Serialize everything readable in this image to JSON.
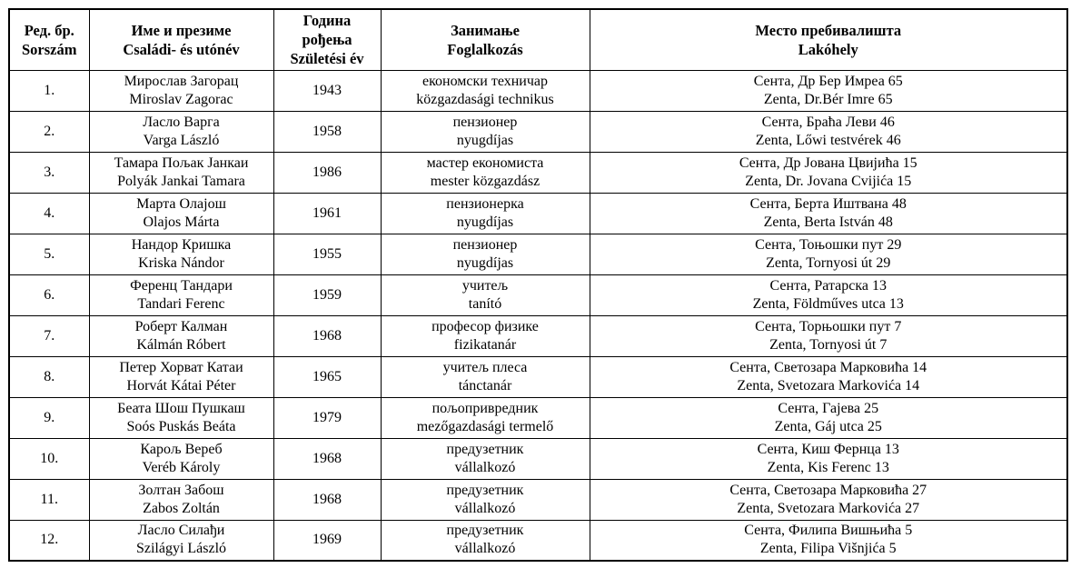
{
  "table": {
    "headers": [
      {
        "sr": "Ред. бр.",
        "hu": "Sorszám"
      },
      {
        "sr": "Име и презиме",
        "hu": "Családi- és utónév"
      },
      {
        "sr": "Година рођења",
        "hu": "Születési év"
      },
      {
        "sr": "Занимање",
        "hu": "Foglalkozás"
      },
      {
        "sr": "Место пребивалишта",
        "hu": "Lakóhely"
      }
    ],
    "rows": [
      {
        "num": "1.",
        "name_sr": "Мирослав Загорац",
        "name_hu": "Miroslav Zagorac",
        "year": "1943",
        "occ_sr": "економски техничар",
        "occ_hu": "közgazdasági technikus",
        "addr_sr": "Сента, Др Бер Имреа 65",
        "addr_hu": "Zenta, Dr.Bér Imre 65"
      },
      {
        "num": "2.",
        "name_sr": "Ласло Варга",
        "name_hu": "Varga László",
        "year": "1958",
        "occ_sr": "пензионер",
        "occ_hu": "nyugdíjas",
        "addr_sr": "Сента, Браћа Леви 46",
        "addr_hu": "Zenta, Lőwi testvérek 46"
      },
      {
        "num": "3.",
        "name_sr": "Тамара Пољак Јанкаи",
        "name_hu": "Polyák Jankai Tamara",
        "year": "1986",
        "occ_sr": "мастер економиста",
        "occ_hu": "mester közgazdász",
        "addr_sr": "Сента, Др Јована Цвијића 15",
        "addr_hu": "Zenta, Dr. Jovana Cvijića 15"
      },
      {
        "num": "4.",
        "name_sr": "Марта Олајош",
        "name_hu": "Olajos Márta",
        "year": "1961",
        "occ_sr": "пензионерка",
        "occ_hu": "nyugdíjas",
        "addr_sr": "Сента, Берта Иштвана 48",
        "addr_hu": "Zenta, Berta István 48"
      },
      {
        "num": "5.",
        "name_sr": "Нандор Кришка",
        "name_hu": "Kriska Nándor",
        "year": "1955",
        "occ_sr": "пензионер",
        "occ_hu": "nyugdíjas",
        "addr_sr": "Сента, Тоњошки пут 29",
        "addr_hu": "Zenta, Tornyosi út 29"
      },
      {
        "num": "6.",
        "name_sr": "Ференц Тандари",
        "name_hu": "Tandari Ferenc",
        "year": "1959",
        "occ_sr": "учитељ",
        "occ_hu": "tanító",
        "addr_sr": "Сента, Ратарска 13",
        "addr_hu": "Zenta, Földműves utca 13"
      },
      {
        "num": "7.",
        "name_sr": "Роберт Калман",
        "name_hu": "Kálmán Róbert",
        "year": "1968",
        "occ_sr": "професор физике",
        "occ_hu": "fizikatanár",
        "addr_sr": "Сента, Торњошки пут 7",
        "addr_hu": "Zenta, Tornyosi út 7"
      },
      {
        "num": "8.",
        "name_sr": "Петер Хорват Катаи",
        "name_hu": "Horvát Kátai Péter",
        "year": "1965",
        "occ_sr": "учитељ плеса",
        "occ_hu": "tánctanár",
        "addr_sr": "Сента, Светозара Марковића 14",
        "addr_hu": "Zenta, Svetozara Markovića 14"
      },
      {
        "num": "9.",
        "name_sr": "Беата Шош Пушкаш",
        "name_hu": "Soós Puskás Beáta",
        "year": "1979",
        "occ_sr": "пољопривредник",
        "occ_hu": "mezőgazdasági termelő",
        "addr_sr": "Сента, Гајева 25",
        "addr_hu": "Zenta, Gáj utca 25"
      },
      {
        "num": "10.",
        "name_sr": "Карољ Вереб",
        "name_hu": "Veréb Károly",
        "year": "1968",
        "occ_sr": "предузетник",
        "occ_hu": "vállalkozó",
        "addr_sr": "Сента, Киш Фернца 13",
        "addr_hu": "Zenta, Kis Ferenc 13"
      },
      {
        "num": "11.",
        "name_sr": "Золтан Забош",
        "name_hu": "Zabos Zoltán",
        "year": "1968",
        "occ_sr": "предузетник",
        "occ_hu": "vállalkozó",
        "addr_sr": "Сента, Светозара Марковића 27",
        "addr_hu": "Zenta, Svetozara Markovića 27"
      },
      {
        "num": "12.",
        "name_sr": "Ласло Силађи",
        "name_hu": "Szilágyi László",
        "year": "1969",
        "occ_sr": "предузетник",
        "occ_hu": "vállalkozó",
        "addr_sr": "Сента, Филипа Вишњића 5",
        "addr_hu": "Zenta, Filipa Višnjića 5"
      }
    ]
  }
}
